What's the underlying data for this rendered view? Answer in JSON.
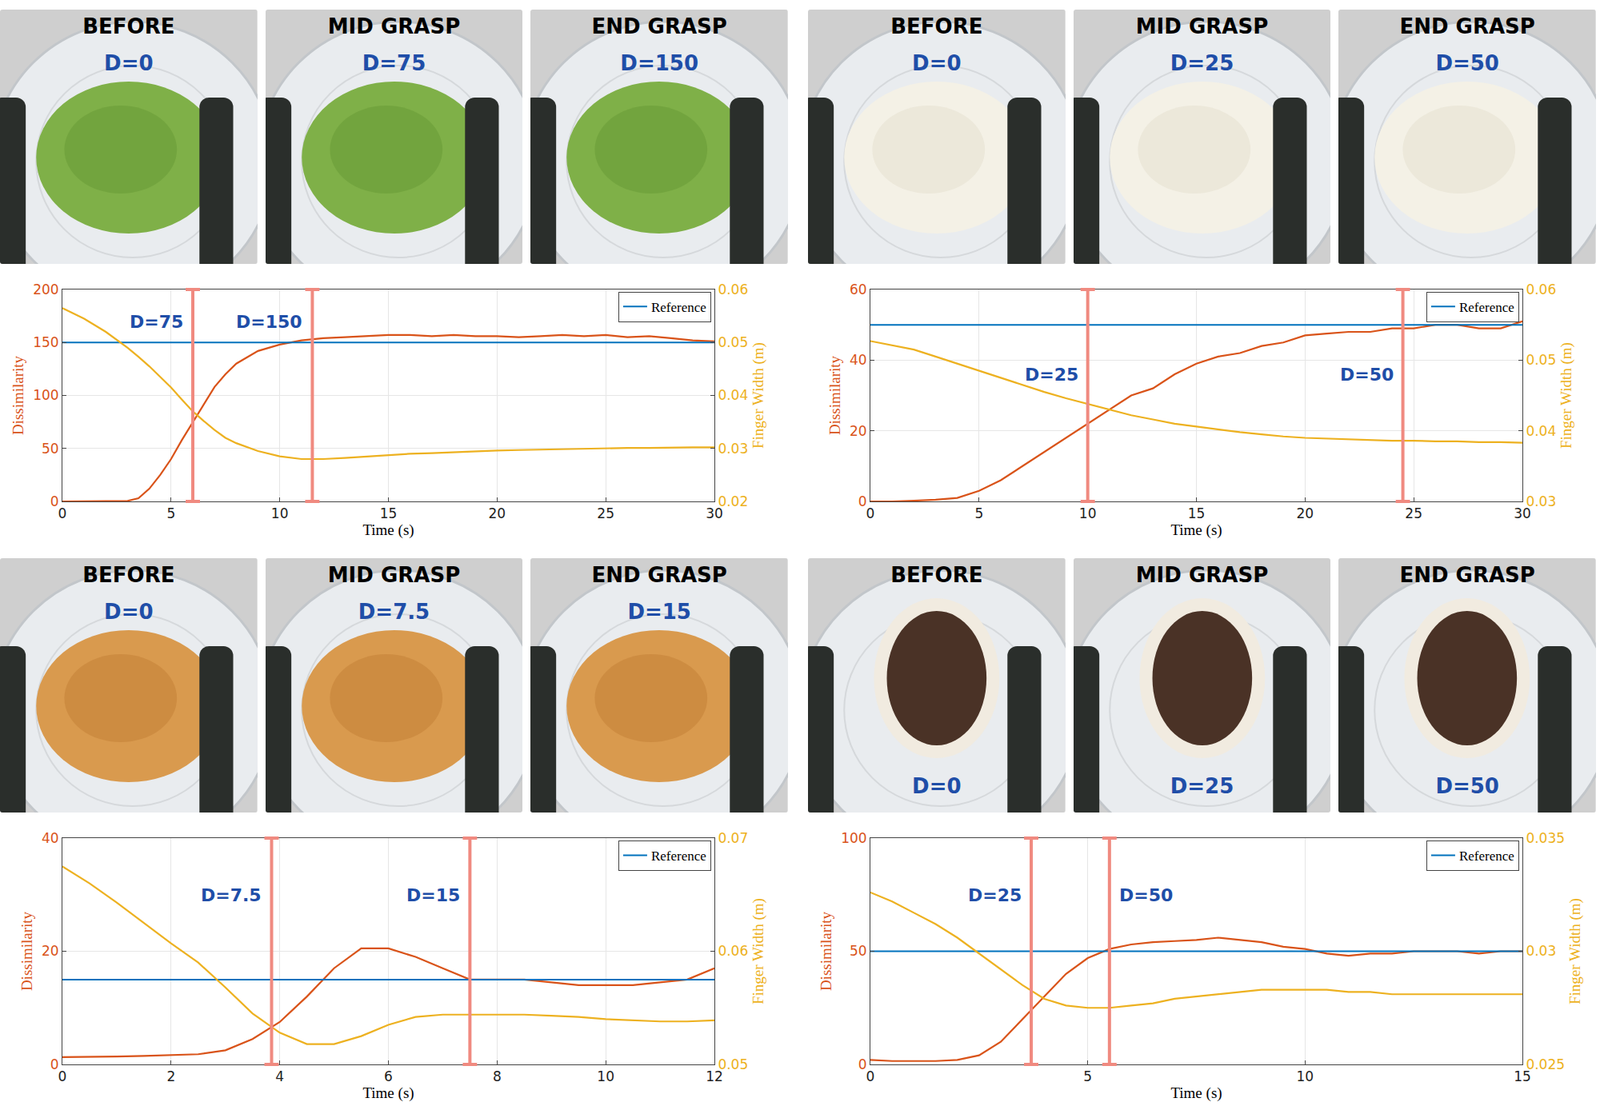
{
  "chart_data": [
    {
      "type": "line",
      "photos": [
        {
          "title": "BEFORE",
          "label": "D=0"
        },
        {
          "title": "MID GRASP",
          "label": "D=75"
        },
        {
          "title": "END GRASP",
          "label": "D=150"
        }
      ],
      "x_label": "Time (s)",
      "x": [
        0,
        1,
        2,
        3,
        3.5,
        4,
        4.5,
        5,
        5.5,
        6,
        6.5,
        7,
        7.5,
        8,
        9,
        10,
        11,
        12,
        13,
        14,
        15,
        16,
        17,
        18,
        19,
        20,
        21,
        22,
        23,
        24,
        25,
        26,
        27,
        28,
        29,
        30
      ],
      "series": [
        {
          "name": "Dissimilarity",
          "color": "#d95319",
          "values": [
            0,
            0,
            0,
            0.5,
            3,
            12,
            25,
            40,
            58,
            75,
            92,
            108,
            120,
            130,
            142,
            148,
            152,
            154,
            155,
            156,
            157,
            157,
            156,
            157,
            156,
            156,
            155,
            156,
            157,
            156,
            157,
            155,
            156,
            154,
            152,
            151
          ]
        },
        {
          "name": "Finger Width (m)",
          "color": "#edb120",
          "axis": "y2",
          "values": [
            0.0565,
            0.0545,
            0.052,
            0.049,
            0.0473,
            0.0455,
            0.0435,
            0.0415,
            0.0392,
            0.037,
            0.0352,
            0.0335,
            0.032,
            0.031,
            0.0295,
            0.0285,
            0.028,
            0.028,
            0.0282,
            0.0285,
            0.0287,
            0.029,
            0.0291,
            0.0293,
            0.0294,
            0.0296,
            0.0297,
            0.0298,
            0.0299,
            0.03,
            0.03,
            0.0301,
            0.0301,
            0.0302,
            0.0302,
            0.0302
          ]
        }
      ],
      "reference": {
        "name": "Reference",
        "color": "#0072bd",
        "value": 150
      },
      "markers": [
        {
          "x": 6,
          "label": "D=75"
        },
        {
          "x": 11.5,
          "label": "D=150"
        }
      ],
      "xlim": [
        0,
        30
      ],
      "xticks": [
        0,
        5,
        10,
        15,
        20,
        25,
        30
      ],
      "ylim": [
        0,
        200
      ],
      "yticks": [
        0,
        50,
        100,
        150,
        200
      ],
      "y2lim": [
        0.02,
        0.06
      ],
      "y2ticks": [
        0.02,
        0.03,
        0.04,
        0.05,
        0.06
      ],
      "grid": true,
      "legend": "upper right"
    },
    {
      "type": "line",
      "photos": [
        {
          "title": "BEFORE",
          "label": "D=0"
        },
        {
          "title": "MID GRASP",
          "label": "D=25"
        },
        {
          "title": "END GRASP",
          "label": "D=50"
        }
      ],
      "x_label": "Time (s)",
      "x": [
        0,
        1,
        2,
        3,
        4,
        5,
        6,
        7,
        8,
        9,
        10,
        11,
        12,
        13,
        14,
        15,
        16,
        17,
        18,
        19,
        20,
        21,
        22,
        23,
        24,
        25,
        26,
        27,
        28,
        29,
        30
      ],
      "series": [
        {
          "name": "Dissimilarity",
          "color": "#d95319",
          "values": [
            0,
            0,
            0.2,
            0.5,
            1,
            3,
            6,
            10,
            14,
            18,
            22,
            26,
            30,
            32,
            36,
            39,
            41,
            42,
            44,
            45,
            47,
            47.5,
            48,
            48,
            49,
            49,
            50,
            50,
            49,
            49,
            51
          ]
        },
        {
          "name": "Finger Width (m)",
          "color": "#edb120",
          "axis": "y2",
          "values": [
            0.0527,
            0.0521,
            0.0515,
            0.0505,
            0.0495,
            0.0485,
            0.0475,
            0.0465,
            0.0455,
            0.0446,
            0.0438,
            0.043,
            0.0422,
            0.0416,
            0.041,
            0.0406,
            0.0402,
            0.0398,
            0.0395,
            0.0392,
            0.039,
            0.0389,
            0.0388,
            0.0387,
            0.0386,
            0.0386,
            0.0385,
            0.0385,
            0.0384,
            0.0384,
            0.0383
          ]
        }
      ],
      "reference": {
        "name": "Reference",
        "color": "#0072bd",
        "value": 50
      },
      "markers": [
        {
          "x": 10,
          "label": "D=25"
        },
        {
          "x": 24.5,
          "label": "D=50"
        }
      ],
      "xlim": [
        0,
        30
      ],
      "xticks": [
        0,
        5,
        10,
        15,
        20,
        25,
        30
      ],
      "ylim": [
        0,
        60
      ],
      "yticks": [
        0,
        20,
        40,
        60
      ],
      "y2lim": [
        0.03,
        0.06
      ],
      "y2ticks": [
        0.03,
        0.04,
        0.05,
        0.06
      ],
      "grid": true,
      "legend": "upper right"
    },
    {
      "type": "line",
      "photos": [
        {
          "title": "BEFORE",
          "label": "D=0"
        },
        {
          "title": "MID GRASP",
          "label": "D=7.5"
        },
        {
          "title": "END GRASP",
          "label": "D=15"
        }
      ],
      "x_label": "Time (s)",
      "x": [
        0,
        0.5,
        1,
        1.5,
        2,
        2.5,
        3,
        3.5,
        4,
        4.5,
        5,
        5.5,
        6,
        6.5,
        7,
        7.5,
        8,
        8.5,
        9,
        9.5,
        10,
        10.5,
        11,
        11.5,
        12
      ],
      "series": [
        {
          "name": "Dissimilarity",
          "color": "#d95319",
          "values": [
            1.3,
            1.3,
            1.4,
            1.5,
            1.6,
            1.8,
            2.5,
            4.5,
            7.5,
            12,
            17,
            20.5,
            20.5,
            19,
            17,
            15,
            15,
            15,
            14.5,
            14,
            14,
            14,
            14.5,
            15,
            17
          ]
        },
        {
          "name": "Finger Width (m)",
          "color": "#edb120",
          "axis": "y2",
          "values": [
            0.0675,
            0.066,
            0.0643,
            0.0625,
            0.0607,
            0.059,
            0.0568,
            0.0545,
            0.0528,
            0.0518,
            0.0518,
            0.0525,
            0.0535,
            0.0542,
            0.0544,
            0.0544,
            0.0544,
            0.0544,
            0.0543,
            0.0542,
            0.054,
            0.0539,
            0.0538,
            0.0538,
            0.0539
          ]
        }
      ],
      "reference": {
        "name": "Reference",
        "color": "#0072bd",
        "value": 15
      },
      "markers": [
        {
          "x": 3.85,
          "label": "D=7.5"
        },
        {
          "x": 7.5,
          "label": "D=15"
        }
      ],
      "xlim": [
        0,
        12
      ],
      "xticks": [
        0,
        2,
        4,
        6,
        8,
        10,
        12
      ],
      "ylim": [
        0,
        40
      ],
      "yticks": [
        0,
        20,
        40
      ],
      "y2lim": [
        0.05,
        0.07
      ],
      "y2ticks": [
        0.05,
        0.06,
        0.07
      ],
      "grid": true,
      "legend": "upper right"
    },
    {
      "type": "line",
      "photos": [
        {
          "title": "BEFORE",
          "label": "D=0"
        },
        {
          "title": "MID GRASP",
          "label": "D=25"
        },
        {
          "title": "END GRASP",
          "label": "D=50"
        }
      ],
      "x_label": "Time (s)",
      "x": [
        0,
        0.5,
        1,
        1.5,
        2,
        2.5,
        3,
        3.5,
        4,
        4.5,
        5,
        5.5,
        6,
        6.5,
        7,
        7.5,
        8,
        8.5,
        9,
        9.5,
        10,
        10.5,
        11,
        11.5,
        12,
        12.5,
        13,
        13.5,
        14,
        14.5,
        15
      ],
      "series": [
        {
          "name": "Dissimilarity",
          "color": "#d95319",
          "values": [
            2,
            1.5,
            1.5,
            1.5,
            2,
            4,
            10,
            20,
            30,
            40,
            47,
            51,
            53,
            54,
            54.5,
            55,
            56,
            55,
            54,
            52,
            51,
            49,
            48,
            49,
            49,
            50,
            50,
            50,
            49,
            50,
            50
          ]
        },
        {
          "name": "Finger Width (m)",
          "color": "#edb120",
          "axis": "y2",
          "values": [
            0.0326,
            0.0322,
            0.0317,
            0.0312,
            0.0306,
            0.0299,
            0.0292,
            0.0285,
            0.0279,
            0.0276,
            0.0275,
            0.0275,
            0.0276,
            0.0277,
            0.0279,
            0.028,
            0.0281,
            0.0282,
            0.0283,
            0.0283,
            0.0283,
            0.0283,
            0.0282,
            0.0282,
            0.0281,
            0.0281,
            0.0281,
            0.0281,
            0.0281,
            0.0281,
            0.0281
          ]
        }
      ],
      "reference": {
        "name": "Reference",
        "color": "#0072bd",
        "value": 50
      },
      "markers": [
        {
          "x": 3.7,
          "label": "D=25"
        },
        {
          "x": 5.5,
          "label": "D=50"
        }
      ],
      "xlim": [
        0,
        15
      ],
      "xticks": [
        0,
        5,
        10,
        15
      ],
      "ylim": [
        0,
        100
      ],
      "yticks": [
        0,
        50,
        100
      ],
      "y2lim": [
        0.025,
        0.035
      ],
      "y2ticks": [
        0.025,
        0.03,
        0.035
      ],
      "grid": true,
      "legend": "upper right"
    }
  ]
}
